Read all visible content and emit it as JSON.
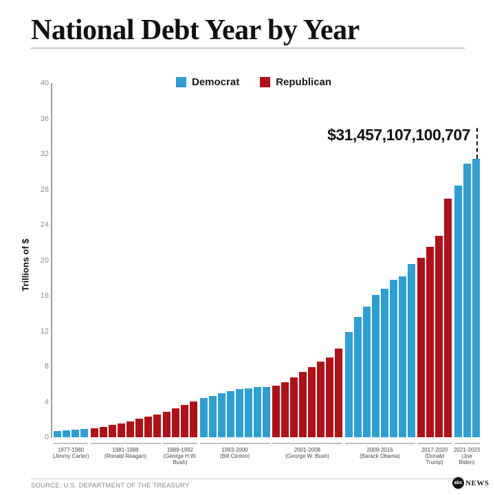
{
  "title": "National Debt Year by Year",
  "legend": {
    "items": [
      {
        "label": "Democrat",
        "color": "#2E9ED7"
      },
      {
        "label": "Republican",
        "color": "#B01117"
      }
    ]
  },
  "annotation": {
    "text": "$31,457,107,100,707"
  },
  "chart_data": {
    "type": "bar",
    "title": "National Debt Year by Year",
    "ylabel": "Trillions of $",
    "xlabel": "",
    "ylim": [
      0,
      40
    ],
    "y_ticks": [
      0,
      4,
      8,
      12,
      16,
      20,
      24,
      28,
      32,
      36,
      40
    ],
    "grid": false,
    "legend_position": "top",
    "series_colors": {
      "Democrat": "#2E9ED7",
      "Republican": "#B01117"
    },
    "annotation": {
      "text": "$31,457,107,100,707",
      "points_to_year": 2023,
      "value_trillions": 31.457107100707
    },
    "groups": [
      {
        "label_lines": [
          "1977-1980",
          "(Jimmy Carter)"
        ],
        "president": "Jimmy Carter",
        "party": "Democrat",
        "years": [
          1977,
          1978,
          1979,
          1980
        ],
        "values": [
          0.7,
          0.77,
          0.83,
          0.91
        ]
      },
      {
        "label_lines": [
          "1981-1988",
          "(Ronald Reagan)"
        ],
        "president": "Ronald Reagan",
        "party": "Republican",
        "years": [
          1981,
          1982,
          1983,
          1984,
          1985,
          1986,
          1987,
          1988
        ],
        "values": [
          1.0,
          1.14,
          1.38,
          1.57,
          1.82,
          2.13,
          2.35,
          2.6
        ]
      },
      {
        "label_lines": [
          "1989-1992",
          "(George H.W.",
          "Bush)"
        ],
        "president": "George H.W. Bush",
        "party": "Republican",
        "years": [
          1989,
          1990,
          1991,
          1992
        ],
        "values": [
          2.86,
          3.23,
          3.67,
          4.07
        ]
      },
      {
        "label_lines": [
          "1993-2000",
          "(Bill Clinton)"
        ],
        "president": "Bill Clinton",
        "party": "Democrat",
        "years": [
          1993,
          1994,
          1995,
          1996,
          1997,
          1998,
          1999,
          2000
        ],
        "values": [
          4.41,
          4.69,
          4.97,
          5.22,
          5.41,
          5.53,
          5.66,
          5.67
        ]
      },
      {
        "label_lines": [
          "2001-2008",
          "(George W. Bush)"
        ],
        "president": "George W. Bush",
        "party": "Republican",
        "years": [
          2001,
          2002,
          2003,
          2004,
          2005,
          2006,
          2007,
          2008
        ],
        "values": [
          5.81,
          6.23,
          6.78,
          7.38,
          7.93,
          8.51,
          9.01,
          10.02
        ]
      },
      {
        "label_lines": [
          "2009-2016",
          "(Barack Obama)"
        ],
        "president": "Barack Obama",
        "party": "Democrat",
        "years": [
          2009,
          2010,
          2011,
          2012,
          2013,
          2014,
          2015,
          2016
        ],
        "values": [
          11.91,
          13.56,
          14.79,
          16.07,
          16.74,
          17.82,
          18.15,
          19.57
        ]
      },
      {
        "label_lines": [
          "2017-2020",
          "(Donald",
          "Trump)"
        ],
        "president": "Donald Trump",
        "party": "Republican",
        "years": [
          2017,
          2018,
          2019,
          2020
        ],
        "values": [
          20.24,
          21.52,
          22.72,
          26.95
        ]
      },
      {
        "label_lines": [
          "2021-2023",
          "(Joe",
          "Biden)"
        ],
        "president": "Joe Biden",
        "party": "Democrat",
        "years": [
          2021,
          2022,
          2023
        ],
        "values": [
          28.43,
          30.93,
          31.46
        ]
      }
    ]
  },
  "footer": {
    "source": "SOURCE: U.S. DEPARTMENT OF THE TREASURY",
    "logo": {
      "circle_text": "abc",
      "news_text": "NEWS"
    }
  }
}
